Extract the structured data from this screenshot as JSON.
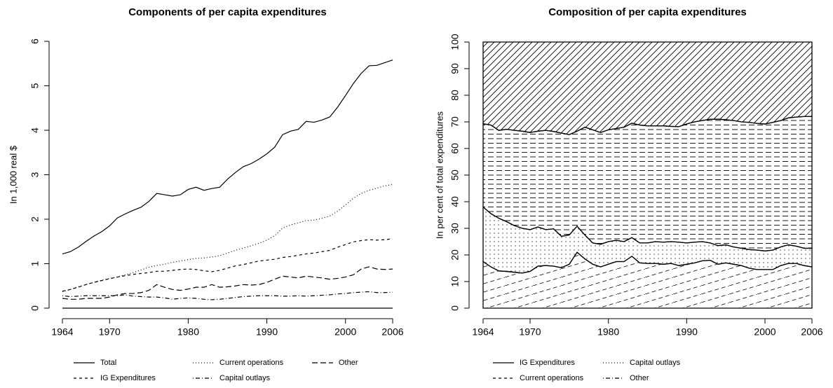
{
  "chart_data": [
    {
      "type": "line",
      "title": "Components of per capita expenditures",
      "y_label": "In 1,000 real $",
      "x": [
        1964,
        1965,
        1966,
        1967,
        1968,
        1969,
        1970,
        1971,
        1972,
        1973,
        1974,
        1975,
        1976,
        1977,
        1978,
        1979,
        1980,
        1981,
        1982,
        1983,
        1984,
        1985,
        1986,
        1987,
        1988,
        1989,
        1990,
        1991,
        1992,
        1993,
        1994,
        1995,
        1996,
        1997,
        1998,
        1999,
        2000,
        2001,
        2002,
        2003,
        2004,
        2005,
        2006
      ],
      "xlim": [
        1964,
        2006
      ],
      "xticks": [
        1964,
        1970,
        1980,
        1990,
        2000,
        2006
      ],
      "ylim": [
        0,
        6
      ],
      "yticks": [
        0,
        1,
        2,
        3,
        4,
        5,
        6
      ],
      "zero_line": true,
      "legend": "bottom",
      "legend_columns": 3,
      "series": [
        {
          "name": "Total",
          "color": "#000000",
          "line_style": "solid",
          "values": [
            1.22,
            1.27,
            1.37,
            1.5,
            1.62,
            1.72,
            1.85,
            2.03,
            2.12,
            2.2,
            2.27,
            2.4,
            2.58,
            2.55,
            2.52,
            2.55,
            2.67,
            2.72,
            2.65,
            2.69,
            2.72,
            2.9,
            3.05,
            3.18,
            3.25,
            3.35,
            3.47,
            3.62,
            3.9,
            3.98,
            4.02,
            4.2,
            4.18,
            4.23,
            4.3,
            4.52,
            4.78,
            5.05,
            5.28,
            5.45,
            5.46,
            5.52,
            5.58
          ]
        },
        {
          "name": "Current operations",
          "color": "#000000",
          "line_style": "dotted",
          "values": [
            0.37,
            0.42,
            0.48,
            0.53,
            0.58,
            0.63,
            0.67,
            0.7,
            0.75,
            0.8,
            0.86,
            0.92,
            0.96,
            0.99,
            1.03,
            1.06,
            1.09,
            1.12,
            1.13,
            1.15,
            1.18,
            1.24,
            1.3,
            1.35,
            1.4,
            1.46,
            1.53,
            1.63,
            1.8,
            1.87,
            1.92,
            1.97,
            1.98,
            2.02,
            2.07,
            2.18,
            2.32,
            2.47,
            2.58,
            2.65,
            2.7,
            2.75,
            2.78
          ]
        },
        {
          "name": "Other",
          "color": "#000000",
          "line_style": "longdash",
          "values": [
            0.22,
            0.2,
            0.2,
            0.22,
            0.22,
            0.22,
            0.25,
            0.3,
            0.33,
            0.33,
            0.35,
            0.4,
            0.53,
            0.47,
            0.42,
            0.4,
            0.43,
            0.47,
            0.47,
            0.53,
            0.47,
            0.48,
            0.5,
            0.53,
            0.52,
            0.53,
            0.58,
            0.65,
            0.72,
            0.7,
            0.68,
            0.72,
            0.7,
            0.68,
            0.65,
            0.67,
            0.7,
            0.75,
            0.88,
            0.93,
            0.88,
            0.87,
            0.88
          ]
        },
        {
          "name": "IG Expenditures",
          "color": "#000000",
          "line_style": "dashed",
          "values": [
            0.38,
            0.42,
            0.47,
            0.53,
            0.58,
            0.62,
            0.66,
            0.7,
            0.73,
            0.76,
            0.78,
            0.8,
            0.83,
            0.83,
            0.85,
            0.87,
            0.88,
            0.87,
            0.84,
            0.82,
            0.85,
            0.9,
            0.95,
            0.98,
            1.02,
            1.06,
            1.08,
            1.1,
            1.14,
            1.16,
            1.19,
            1.22,
            1.24,
            1.27,
            1.3,
            1.37,
            1.43,
            1.49,
            1.52,
            1.54,
            1.53,
            1.54,
            1.56
          ]
        },
        {
          "name": "Capital outlays",
          "color": "#000000",
          "line_style": "dotdash",
          "values": [
            0.28,
            0.26,
            0.27,
            0.28,
            0.28,
            0.28,
            0.28,
            0.28,
            0.3,
            0.27,
            0.26,
            0.25,
            0.25,
            0.23,
            0.2,
            0.22,
            0.23,
            0.22,
            0.2,
            0.19,
            0.2,
            0.22,
            0.24,
            0.26,
            0.27,
            0.28,
            0.28,
            0.28,
            0.27,
            0.27,
            0.28,
            0.27,
            0.28,
            0.29,
            0.3,
            0.32,
            0.33,
            0.35,
            0.36,
            0.37,
            0.35,
            0.35,
            0.36
          ]
        }
      ]
    },
    {
      "type": "stacked_area",
      "title": "Composition of per capita expenditures",
      "y_label": "In per cent of total expenditures",
      "x": [
        1964,
        1965,
        1966,
        1967,
        1968,
        1969,
        1970,
        1971,
        1972,
        1973,
        1974,
        1975,
        1976,
        1977,
        1978,
        1979,
        1980,
        1981,
        1982,
        1983,
        1984,
        1985,
        1986,
        1987,
        1988,
        1989,
        1990,
        1991,
        1992,
        1993,
        1994,
        1995,
        1996,
        1997,
        1998,
        1999,
        2000,
        2001,
        2002,
        2003,
        2004,
        2005,
        2006
      ],
      "xlim": [
        1964,
        2006
      ],
      "xticks": [
        1964,
        1970,
        1980,
        1990,
        2000,
        2006
      ],
      "ylim": [
        0,
        100
      ],
      "yticks": [
        0,
        10,
        20,
        30,
        40,
        50,
        60,
        70,
        80,
        90,
        100
      ],
      "legend": "bottom",
      "legend_columns": 2,
      "series": [
        {
          "name": "IG Expenditures",
          "color": "#000000",
          "line_style": "solid",
          "pattern": "diagonal-dashes",
          "values": [
            17.5,
            15.5,
            14,
            13.8,
            13.5,
            13.2,
            13.8,
            15.8,
            16,
            15.8,
            15.2,
            16.5,
            21,
            18.5,
            16.5,
            15.5,
            16.5,
            17.5,
            17.5,
            19.5,
            17,
            16.8,
            16.8,
            16.5,
            16.8,
            16,
            16.5,
            17,
            17.8,
            18,
            16.5,
            17,
            16.5,
            16,
            15,
            14.5,
            14.5,
            14.5,
            16,
            16.8,
            16.8,
            16,
            15.5
          ]
        },
        {
          "name": "Capital outlays",
          "color": "#000000",
          "line_style": "dotted",
          "pattern": "dots",
          "values": [
            20.5,
            20,
            19.8,
            18.7,
            17.5,
            16.8,
            15.7,
            14.7,
            13.5,
            14,
            11.8,
            11,
            9.8,
            9,
            8,
            8.5,
            8.5,
            8,
            7.5,
            7,
            7.5,
            7.7,
            8.2,
            8.3,
            8.2,
            8.8,
            8,
            7.8,
            7.2,
            6.5,
            7,
            6.8,
            6.5,
            6.5,
            7,
            7.3,
            7,
            7.3,
            7,
            7,
            6.5,
            6.5,
            7
          ]
        },
        {
          "name": "Current operations",
          "color": "#000000",
          "line_style": "dashed",
          "pattern": "horizontal-dashes",
          "values": [
            31.3,
            33.3,
            33,
            34.7,
            35.8,
            36.5,
            36.5,
            36,
            37.3,
            36.6,
            38.8,
            37.7,
            35.7,
            40.5,
            42.5,
            42,
            42,
            42,
            43,
            43,
            44.3,
            44,
            43.5,
            43.7,
            43.3,
            43.4,
            44.7,
            45.2,
            45.5,
            46.5,
            47.5,
            47,
            47.5,
            47.5,
            47.8,
            47.6,
            47.7,
            48,
            47.5,
            47.7,
            48.5,
            49.5,
            49.5
          ]
        },
        {
          "name": "Other",
          "color": "#000000",
          "line_style": "dotdash",
          "pattern": "hatch",
          "values": [
            30.7,
            31.2,
            33.2,
            32.8,
            33.2,
            33.5,
            34,
            33.5,
            33.2,
            33.6,
            34.2,
            34.8,
            33.5,
            32,
            33,
            34,
            33,
            32.5,
            32,
            30.5,
            31.2,
            31.5,
            31.5,
            31.5,
            31.7,
            31.8,
            30.8,
            30,
            29.5,
            29,
            29,
            29.2,
            29.5,
            30,
            30.2,
            30.6,
            30.8,
            30.2,
            29.5,
            28.5,
            28.2,
            28,
            28
          ]
        }
      ]
    }
  ]
}
